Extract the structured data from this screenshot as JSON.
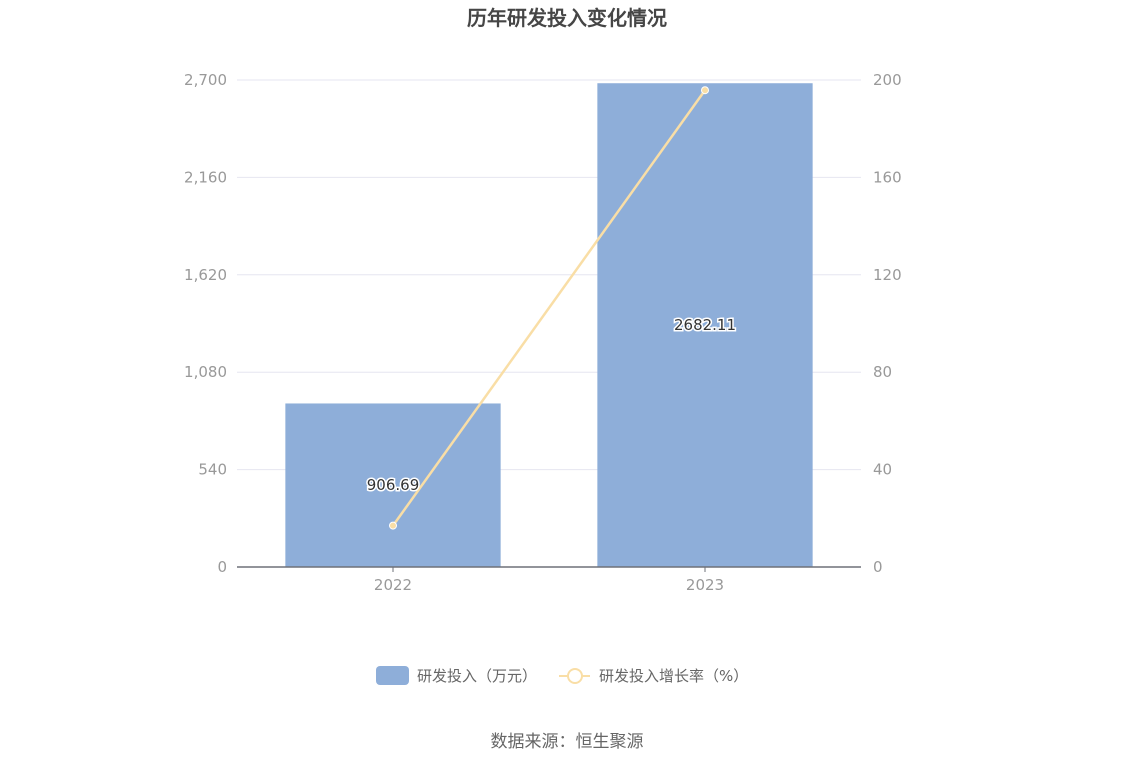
{
  "chart_data": {
    "type": "bar",
    "title": "历年研发投入变化情况",
    "categories": [
      "2022",
      "2023"
    ],
    "series": [
      {
        "name": "研发投入（万元）",
        "type": "bar",
        "axis": "left",
        "values": [
          906.69,
          2682.11
        ],
        "labels": [
          "906.69",
          "2682.11"
        ],
        "color": "#8eaed9"
      },
      {
        "name": "研发投入增长率（%）",
        "type": "line",
        "axis": "right",
        "values": [
          17,
          195.8
        ],
        "color": "#f9dea6"
      }
    ],
    "y_left": {
      "ylim": [
        0,
        2700
      ],
      "ticks": [
        0,
        540,
        1080,
        1620,
        2160,
        2700
      ],
      "tick_labels": [
        "0",
        "540",
        "1,080",
        "1,620",
        "2,160",
        "2,700"
      ]
    },
    "y_right": {
      "ylim": [
        0,
        200
      ],
      "ticks": [
        0,
        40,
        80,
        120,
        160,
        200
      ],
      "tick_labels": [
        "0",
        "40",
        "80",
        "120",
        "160",
        "200"
      ]
    },
    "grid": true,
    "legend_position": "bottom-center"
  },
  "footer": {
    "source": "数据来源：恒生聚源"
  },
  "colors": {
    "gridline": "#e6e6f0",
    "axis": "#6e7079",
    "tick_text": "#999999"
  }
}
